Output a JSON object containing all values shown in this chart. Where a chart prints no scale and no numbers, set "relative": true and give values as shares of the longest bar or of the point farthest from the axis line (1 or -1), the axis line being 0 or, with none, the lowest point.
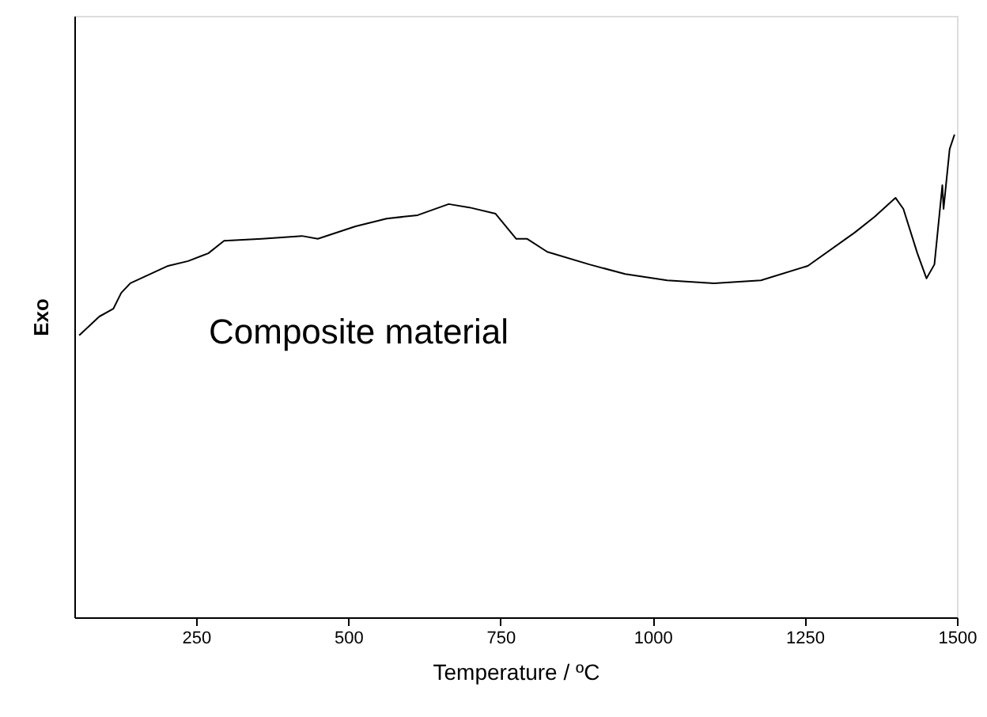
{
  "chart_data": {
    "type": "line",
    "relative": true,
    "xlabel": "Temperature /   ºC",
    "ylabel": "Exo",
    "xlim": [
      50,
      1500
    ],
    "xticks": [
      250,
      500,
      750,
      1000,
      1250,
      1500
    ],
    "tick_labels": "x",
    "grid": false,
    "marker": "none",
    "line_style": "solid",
    "annotations": [
      "Composite material"
    ],
    "series": [
      {
        "color": "#000000",
        "x": [
          58,
          91,
          114,
          127,
          142,
          204,
          237,
          270,
          296,
          358,
          424,
          450,
          512,
          563,
          614,
          665,
          699,
          742,
          776,
          794,
          827,
          896,
          955,
          1024,
          1101,
          1178,
          1255,
          1332,
          1365,
          1399,
          1412,
          1435,
          1450,
          1463,
          1476,
          1478,
          1488,
          1496
        ],
        "values": [
          0.584,
          0.623,
          0.639,
          0.672,
          0.692,
          0.728,
          0.738,
          0.754,
          0.78,
          0.784,
          0.79,
          0.784,
          0.81,
          0.826,
          0.833,
          0.856,
          0.849,
          0.836,
          0.784,
          0.784,
          0.757,
          0.731,
          0.711,
          0.698,
          0.692,
          0.698,
          0.728,
          0.797,
          0.83,
          0.869,
          0.846,
          0.754,
          0.702,
          0.731,
          0.895,
          0.846,
          0.97,
          1.0
        ]
      }
    ]
  }
}
